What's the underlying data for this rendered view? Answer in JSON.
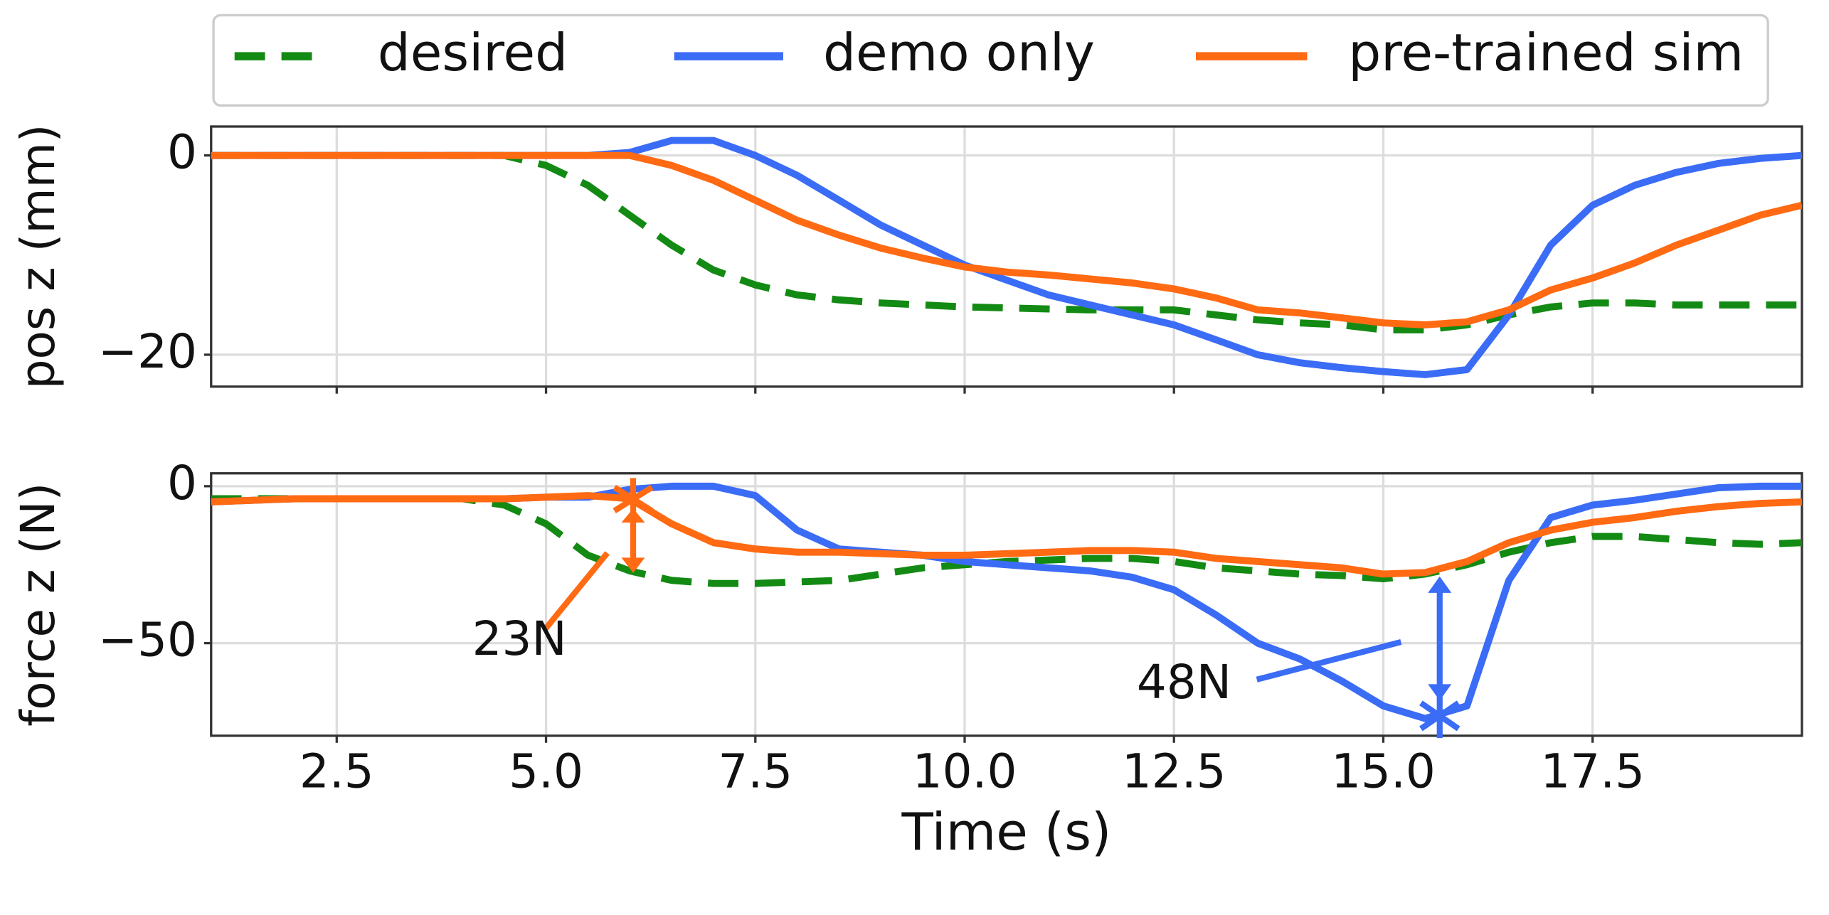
{
  "chart_data": [
    {
      "type": "line",
      "ylabel": "pos z (mm)",
      "x": [
        1,
        1.5,
        2,
        2.5,
        3,
        3.5,
        4,
        4.5,
        5,
        5.5,
        6,
        6.5,
        7,
        7.5,
        8,
        8.5,
        9,
        9.5,
        10,
        10.5,
        11,
        11.5,
        12,
        12.5,
        13,
        13.5,
        14,
        14.5,
        15,
        15.5,
        16,
        16.5,
        17,
        17.5,
        18,
        18.5,
        19,
        19.5,
        20
      ],
      "xlim": [
        1,
        20
      ],
      "ylim": [
        -23.2,
        2.9
      ],
      "yticks": [
        0,
        {
          "value": -20,
          "label": "−20"
        }
      ],
      "grid": true,
      "series": [
        {
          "name": "desired",
          "color": "#138a13",
          "style": "dashed",
          "values": [
            0,
            0,
            0,
            0,
            0,
            0,
            0,
            0,
            -1,
            -3,
            -6,
            -9,
            -11.5,
            -13,
            -14,
            -14.5,
            -14.8,
            -15,
            -15.2,
            -15.3,
            -15.4,
            -15.5,
            -15.5,
            -15.5,
            -16,
            -16.5,
            -16.8,
            -17,
            -17.5,
            -17.5,
            -17,
            -16,
            -15.2,
            -14.8,
            -14.8,
            -15,
            -15,
            -15,
            -15
          ]
        },
        {
          "name": "demo only",
          "color": "#3b6cf6",
          "style": "solid",
          "values": [
            0,
            0,
            0,
            0,
            0,
            0,
            0,
            0,
            0,
            0,
            0.3,
            1.5,
            1.5,
            0,
            -2,
            -4.5,
            -7,
            -9,
            -11,
            -12.5,
            -14,
            -15,
            -16,
            -17,
            -18.5,
            -20,
            -20.8,
            -21.3,
            -21.7,
            -22,
            -21.5,
            -16,
            -9,
            -5,
            -3,
            -1.7,
            -0.8,
            -0.3,
            0
          ]
        },
        {
          "name": "pre-trained sim",
          "color": "#ff6a13",
          "style": "solid",
          "values": [
            0,
            0,
            0,
            0,
            0,
            0,
            0,
            0,
            0,
            0,
            0,
            -1,
            -2.5,
            -4.5,
            -6.5,
            -8,
            -9.3,
            -10.3,
            -11.2,
            -11.7,
            -12,
            -12.4,
            -12.8,
            -13.4,
            -14.3,
            -15.5,
            -15.8,
            -16.3,
            -16.8,
            -17,
            -16.7,
            -15.5,
            -13.5,
            -12.3,
            -10.8,
            -9,
            -7.5,
            -6,
            -5
          ]
        }
      ]
    },
    {
      "type": "line",
      "ylabel": "force z (N)",
      "xlabel": "Time (s)",
      "x": [
        1,
        1.5,
        2,
        2.5,
        3,
        3.5,
        4,
        4.5,
        5,
        5.5,
        6,
        6.5,
        7,
        7.5,
        8,
        8.5,
        9,
        9.5,
        10,
        10.5,
        11,
        11.5,
        12,
        12.5,
        13,
        13.5,
        14,
        14.5,
        15,
        15.5,
        16,
        16.5,
        17,
        17.5,
        18,
        18.5,
        19,
        19.5,
        20
      ],
      "xlim": [
        1,
        20
      ],
      "ylim": [
        -79.5,
        4.1
      ],
      "xticks": [
        2.5,
        {
          "value": 5,
          "label": "5.0"
        },
        7.5,
        {
          "value": 10,
          "label": "10.0"
        },
        12.5,
        {
          "value": 15,
          "label": "15.0"
        },
        17.5
      ],
      "yticks": [
        0,
        {
          "value": -50,
          "label": "−50"
        }
      ],
      "grid": true,
      "series": [
        {
          "color": "#138a13",
          "style": "dashed",
          "values": [
            -4,
            -4,
            -4,
            -4,
            -4,
            -4,
            -4,
            -6,
            -12,
            -22,
            -27,
            -30,
            -31,
            -31,
            -30.5,
            -30,
            -28,
            -26,
            -25,
            -24,
            -23.5,
            -23,
            -23,
            -24,
            -26,
            -27,
            -28,
            -28.5,
            -29.5,
            -28,
            -25,
            -21,
            -18,
            -16,
            -16,
            -17,
            -18,
            -18.5,
            -18
          ]
        },
        {
          "color": "#3b6cf6",
          "style": "solid",
          "values": [
            -5,
            -4.5,
            -4,
            -4,
            -4,
            -4,
            -4,
            -4,
            -3.5,
            -3.5,
            -1,
            0,
            0,
            -3,
            -14,
            -20,
            -21,
            -22,
            -24,
            -25,
            -26,
            -27,
            -29,
            -33,
            -41,
            -50,
            -55,
            -62,
            -70,
            -74,
            -70,
            -30,
            -10,
            -6,
            -4.5,
            -2.5,
            -0.5,
            0,
            0
          ]
        },
        {
          "color": "#ff6a13",
          "style": "solid",
          "values": [
            -5,
            -4.5,
            -4,
            -4,
            -4,
            -4,
            -4,
            -4,
            -3.5,
            -3,
            -4,
            -12,
            -18,
            -20,
            -21,
            -21,
            -21.5,
            -22,
            -22,
            -21.5,
            -21,
            -20.5,
            -20.5,
            -21,
            -23,
            -24,
            -25,
            -26,
            -28,
            -27.5,
            -24,
            -18,
            -14,
            -11.5,
            -10,
            -8,
            -6.5,
            -5.5,
            -5
          ]
        }
      ],
      "annotations": [
        {
          "text": "23N",
          "color": "#ff6a13"
        },
        {
          "text": "48N",
          "color": "#3b6cf6"
        }
      ]
    }
  ]
}
